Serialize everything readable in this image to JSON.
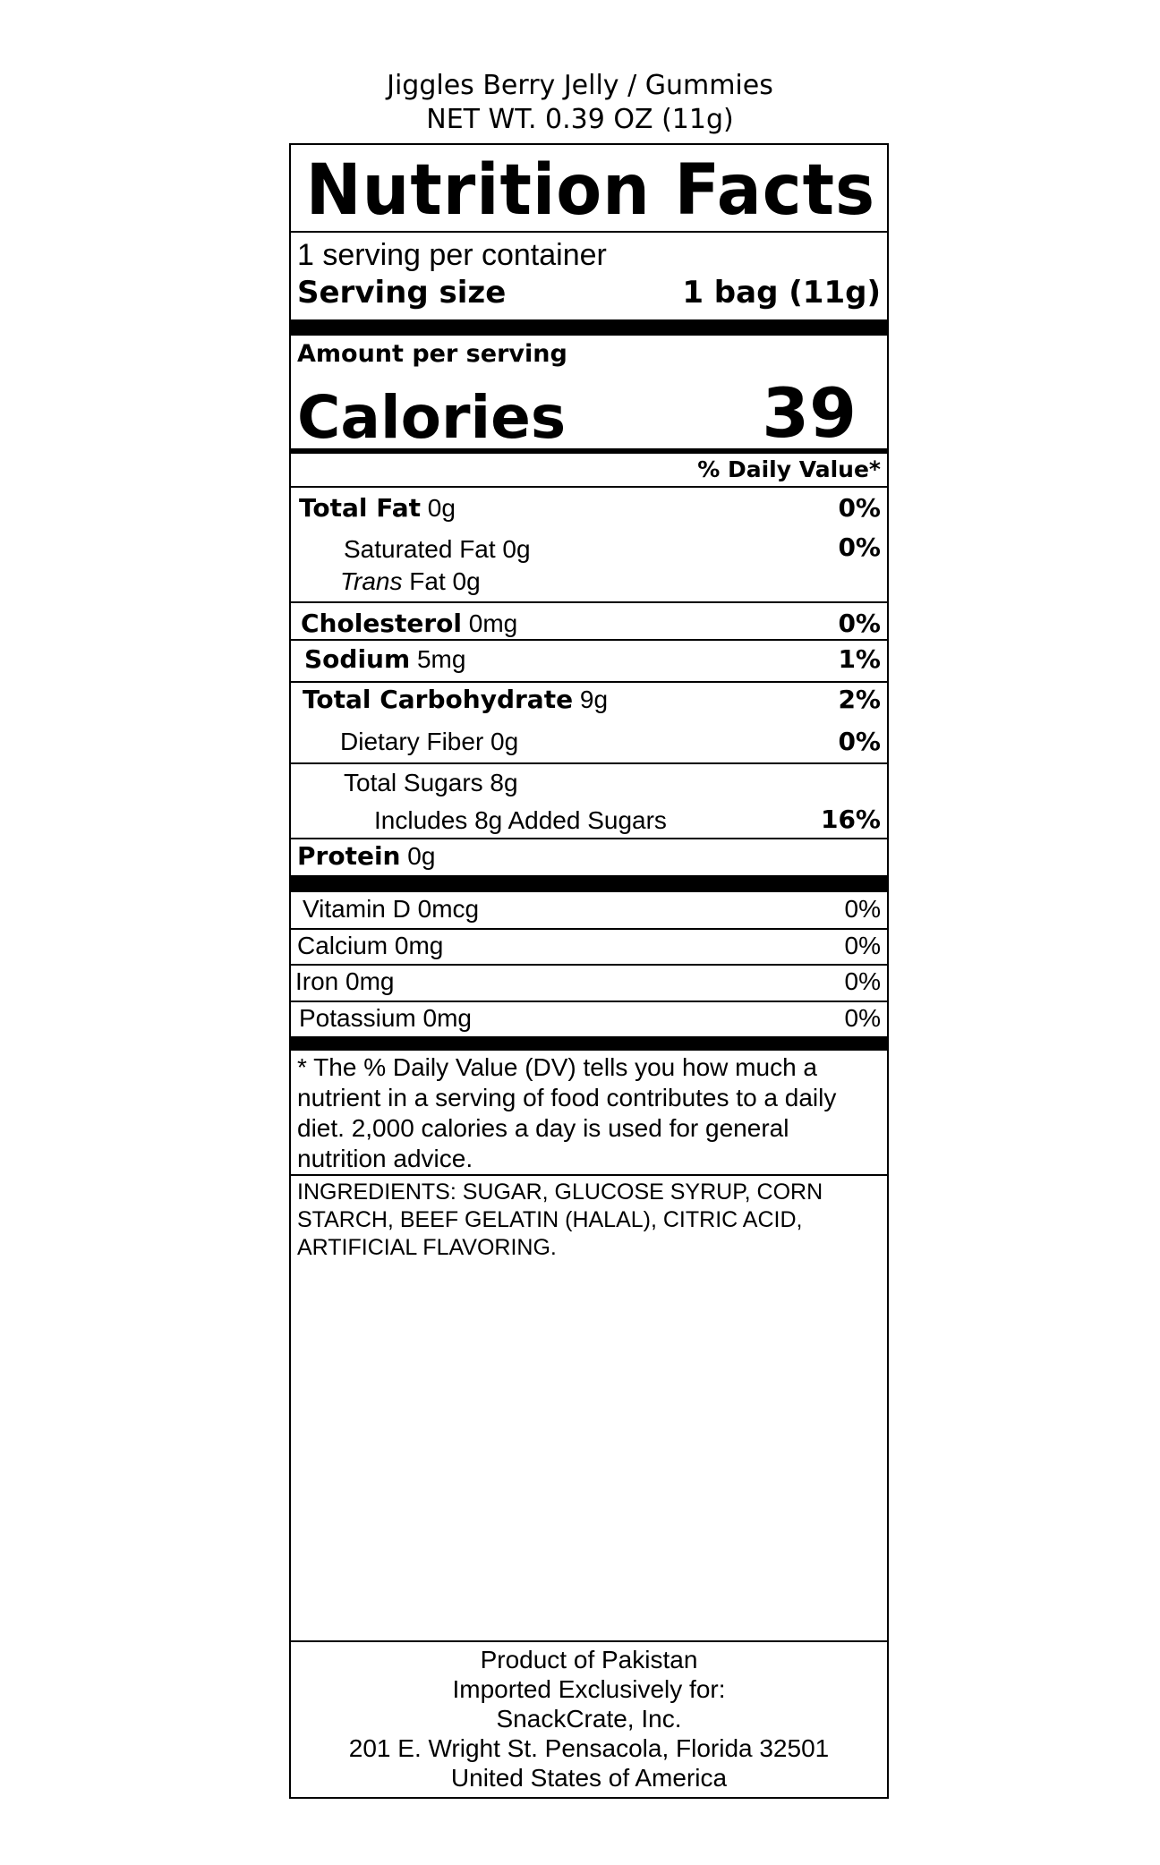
{
  "header": {
    "product_name": "Jiggles Berry Jelly / Gummies",
    "net_weight": "NET WT. 0.39 OZ (11g)"
  },
  "panel": {
    "title": "Nutrition Facts",
    "servings_per_container": "1 serving per container",
    "serving_size_label": "Serving size",
    "serving_size_value": "1 bag (11g)",
    "amount_per_serving": "Amount per serving",
    "calories_label": "Calories",
    "calories_value": "39",
    "dv_header": "% Daily Value*",
    "nutrients": [
      {
        "name": "Total Fat",
        "amount": "0g",
        "dv": "0%"
      },
      {
        "name": "Saturated Fat 0g",
        "dv": "0%"
      },
      {
        "name_italic": "Trans",
        "name": " Fat 0g"
      },
      {
        "name": "Cholesterol",
        "amount": "0mg",
        "dv": "0%"
      },
      {
        "name": "Sodium",
        "amount": "5mg",
        "dv": "1%"
      },
      {
        "name": "Total Carbohydrate",
        "amount": "9g",
        "dv": "2%"
      },
      {
        "name": "Dietary Fiber 0g",
        "dv": "0%"
      },
      {
        "name": "Total Sugars 8g"
      },
      {
        "name": "Includes 8g Added Sugars",
        "dv": "16%"
      },
      {
        "name": "Protein",
        "amount": "0g"
      }
    ],
    "vitamins": [
      {
        "name": "Vitamin D 0mcg",
        "dv": "0%"
      },
      {
        "name": "Calcium 0mg",
        "dv": "0%"
      },
      {
        "name": "Iron 0mg",
        "dv": "0%"
      },
      {
        "name": "Potassium 0mg",
        "dv": "0%"
      }
    ],
    "footnote": [
      "* The % Daily Value (DV) tells you how much a",
      "nutrient in a serving of food contributes to a daily",
      "diet. 2,000 calories a day is used for general",
      "nutrition advice."
    ],
    "ingredients": [
      "INGREDIENTS: SUGAR, GLUCOSE SYRUP, CORN",
      "STARCH, BEEF GELATIN (HALAL), CITRIC ACID,",
      "ARTIFICIAL FLAVORING."
    ],
    "origin": [
      "Product of Pakistan",
      "Imported Exclusively for:",
      "SnackCrate, Inc.",
      "201 E. Wright St. Pensacola, Florida 32501",
      "United States of America"
    ]
  }
}
